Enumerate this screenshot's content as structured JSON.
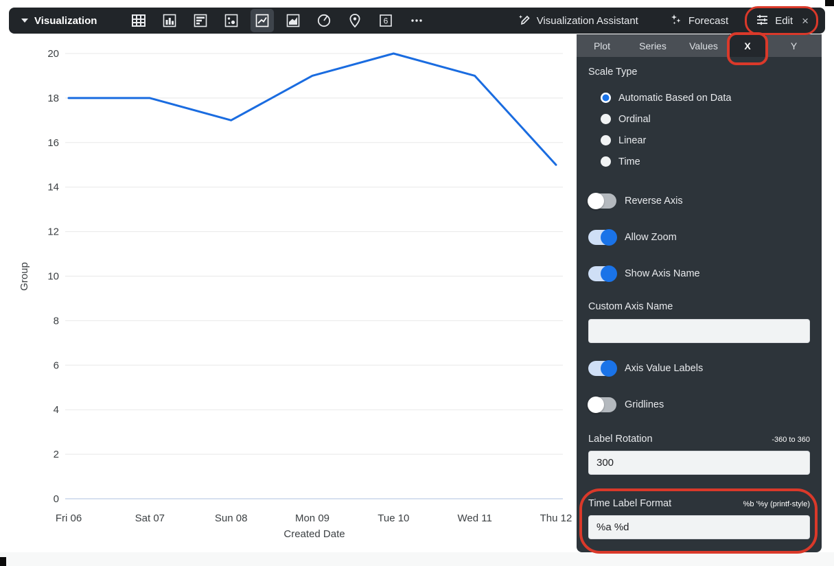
{
  "toolbar": {
    "title": "Visualization",
    "chart_type_icons": [
      "table-icon",
      "bar-chart-icon",
      "horizontal-bar-icon",
      "scatter-icon",
      "line-chart-icon",
      "area-chart-icon",
      "pie-chart-icon",
      "map-pin-icon",
      "single-value-icon",
      "more-icon"
    ],
    "selected_chart_type": "line-chart-icon",
    "assistant_label": "Visualization Assistant",
    "forecast_label": "Forecast",
    "edit_label": "Edit",
    "close_label": "×"
  },
  "tabs": {
    "items": [
      "Plot",
      "Series",
      "Values",
      "X",
      "Y"
    ],
    "selected": "X"
  },
  "panel": {
    "scale_type": {
      "label": "Scale Type",
      "options": [
        {
          "label": "Automatic Based on Data",
          "selected": true
        },
        {
          "label": "Ordinal",
          "selected": false
        },
        {
          "label": "Linear",
          "selected": false
        },
        {
          "label": "Time",
          "selected": false
        }
      ]
    },
    "toggles_top": [
      {
        "label": "Reverse Axis",
        "on": false
      },
      {
        "label": "Allow Zoom",
        "on": true
      },
      {
        "label": "Show Axis Name",
        "on": true
      }
    ],
    "custom_axis_name": {
      "label": "Custom Axis Name",
      "value": ""
    },
    "toggles_mid": [
      {
        "label": "Axis Value Labels",
        "on": true
      },
      {
        "label": "Gridlines",
        "on": false
      }
    ],
    "label_rotation": {
      "label": "Label Rotation",
      "hint": "-360 to 360",
      "value": "300"
    },
    "time_label_format": {
      "label": "Time Label Format",
      "hint": "%b '%y (printf-style)",
      "value": "%a %d"
    }
  },
  "chart_data": {
    "type": "line",
    "categories": [
      "Fri 06",
      "Sat 07",
      "Sun 08",
      "Mon 09",
      "Tue 10",
      "Wed 11",
      "Thu 12"
    ],
    "values": [
      18,
      18,
      17,
      19,
      20,
      19,
      15
    ],
    "title": "",
    "xlabel": "Created Date",
    "ylabel": "Group",
    "ylim": [
      0,
      20
    ],
    "ytick_step": 2,
    "grid": true,
    "line_color": "#1a6ce0"
  },
  "colors": {
    "toolbar_bg": "#212529",
    "panel_bg": "#2d343a",
    "tabbar_bg": "#4a4f55",
    "accent_blue": "#1a73e8",
    "annotation_red": "#da392a",
    "gridline": "#e8e8e8",
    "baseline": "#c9d6ea"
  }
}
